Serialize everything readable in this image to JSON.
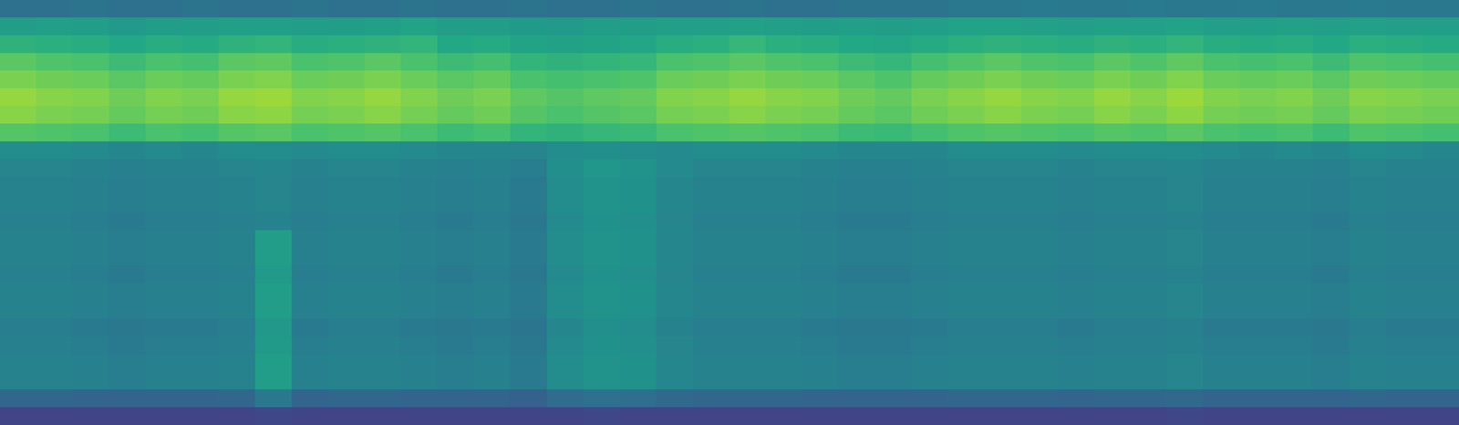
{
  "chart_data": {
    "type": "heatmap",
    "tick_labels": false,
    "zlim": [
      0,
      100
    ],
    "values": [
      [
        37,
        37,
        38,
        37,
        37,
        38,
        37,
        37,
        38,
        37,
        37,
        38,
        37,
        37,
        38,
        37,
        37,
        38,
        37,
        37,
        38,
        37,
        37,
        38,
        38,
        38,
        40,
        40,
        41,
        40,
        40,
        41,
        40,
        40,
        41,
        40,
        40,
        41,
        40,
        40
      ],
      [
        55,
        56,
        55,
        54,
        55,
        55,
        56,
        56,
        55,
        55,
        56,
        58,
        55,
        55,
        54,
        54,
        55,
        55,
        56,
        56,
        57,
        56,
        55,
        56,
        55,
        56,
        58,
        58,
        57,
        56,
        57,
        57,
        58,
        56,
        56,
        57,
        56,
        57,
        56,
        56
      ],
      [
        64,
        63,
        62,
        60,
        62,
        61,
        64,
        65,
        62,
        63,
        64,
        65,
        60,
        61,
        58,
        57,
        58,
        59,
        62,
        63,
        66,
        63,
        62,
        60,
        59,
        61,
        63,
        64,
        63,
        62,
        64,
        63,
        65,
        62,
        61,
        62,
        60,
        63,
        62,
        61
      ],
      [
        74,
        72,
        71,
        68,
        71,
        70,
        74,
        75,
        71,
        72,
        74,
        71,
        68,
        70,
        65,
        64,
        65,
        66,
        71,
        72,
        74,
        72,
        71,
        68,
        66,
        70,
        72,
        74,
        72,
        71,
        74,
        72,
        75,
        71,
        70,
        71,
        68,
        72,
        71,
        70
      ],
      [
        80,
        78,
        77,
        74,
        77,
        76,
        80,
        81,
        77,
        78,
        80,
        77,
        74,
        76,
        71,
        70,
        71,
        72,
        77,
        78,
        80,
        78,
        77,
        74,
        72,
        76,
        78,
        80,
        78,
        77,
        80,
        78,
        81,
        77,
        76,
        77,
        74,
        78,
        77,
        76
      ],
      [
        84,
        82,
        81,
        78,
        81,
        80,
        84,
        85,
        81,
        82,
        84,
        81,
        78,
        80,
        75,
        73,
        75,
        76,
        81,
        82,
        84,
        82,
        81,
        78,
        76,
        80,
        82,
        84,
        82,
        81,
        84,
        82,
        85,
        81,
        80,
        81,
        78,
        82,
        81,
        80
      ],
      [
        82,
        80,
        79,
        76,
        79,
        78,
        82,
        83,
        79,
        80,
        82,
        79,
        76,
        78,
        73,
        71,
        73,
        74,
        79,
        80,
        82,
        80,
        79,
        76,
        74,
        78,
        80,
        82,
        80,
        79,
        82,
        80,
        83,
        79,
        78,
        79,
        76,
        80,
        79,
        78
      ],
      [
        73,
        72,
        71,
        68,
        71,
        70,
        73,
        74,
        71,
        72,
        73,
        71,
        68,
        70,
        65,
        64,
        66,
        67,
        71,
        72,
        73,
        72,
        71,
        68,
        67,
        70,
        72,
        73,
        72,
        71,
        73,
        72,
        74,
        71,
        70,
        71,
        68,
        72,
        71,
        70
      ],
      [
        48,
        48,
        47,
        46,
        47,
        46,
        48,
        48,
        47,
        48,
        48,
        47,
        46,
        46,
        45,
        48,
        49,
        48,
        47,
        48,
        48,
        48,
        47,
        46,
        46,
        46,
        48,
        48,
        48,
        47,
        48,
        48,
        48,
        47,
        46,
        47,
        46,
        48,
        47,
        46
      ],
      [
        45,
        45,
        44,
        43,
        44,
        44,
        45,
        46,
        44,
        45,
        45,
        44,
        43,
        44,
        42,
        49,
        52,
        51,
        47,
        45,
        45,
        45,
        44,
        43,
        43,
        44,
        45,
        45,
        45,
        44,
        45,
        45,
        46,
        44,
        44,
        44,
        43,
        45,
        44,
        44
      ],
      [
        44,
        44,
        43,
        42,
        43,
        43,
        44,
        45,
        43,
        44,
        44,
        43,
        42,
        43,
        41,
        48,
        51,
        50,
        46,
        44,
        44,
        44,
        43,
        42,
        42,
        43,
        44,
        44,
        44,
        43,
        44,
        44,
        45,
        43,
        43,
        43,
        42,
        44,
        43,
        43
      ],
      [
        44,
        44,
        43,
        42,
        43,
        43,
        44,
        45,
        43,
        44,
        44,
        43,
        42,
        43,
        41,
        48,
        51,
        50,
        46,
        44,
        44,
        44,
        43,
        42,
        42,
        43,
        44,
        44,
        44,
        43,
        44,
        44,
        45,
        43,
        43,
        43,
        42,
        44,
        43,
        43
      ],
      [
        43,
        43,
        42,
        41,
        42,
        42,
        43,
        44,
        42,
        43,
        43,
        42,
        41,
        42,
        40,
        47,
        50,
        49,
        45,
        43,
        43,
        43,
        42,
        41,
        41,
        42,
        43,
        43,
        43,
        42,
        43,
        43,
        44,
        42,
        42,
        42,
        41,
        43,
        42,
        42
      ],
      [
        44,
        44,
        43,
        42,
        43,
        43,
        44,
        55,
        43,
        44,
        44,
        43,
        42,
        43,
        41,
        48,
        51,
        50,
        46,
        44,
        44,
        44,
        43,
        42,
        42,
        43,
        44,
        44,
        44,
        43,
        44,
        44,
        45,
        43,
        43,
        43,
        42,
        44,
        43,
        43
      ],
      [
        44,
        44,
        43,
        42,
        43,
        43,
        44,
        55,
        43,
        44,
        44,
        43,
        42,
        43,
        41,
        48,
        51,
        50,
        46,
        44,
        44,
        44,
        43,
        42,
        42,
        43,
        44,
        44,
        44,
        43,
        44,
        44,
        45,
        43,
        43,
        43,
        42,
        44,
        43,
        43
      ],
      [
        43,
        43,
        42,
        41,
        42,
        42,
        43,
        54,
        42,
        43,
        43,
        42,
        41,
        42,
        40,
        47,
        50,
        49,
        45,
        43,
        43,
        43,
        42,
        41,
        41,
        42,
        43,
        43,
        43,
        42,
        43,
        43,
        44,
        42,
        42,
        42,
        41,
        43,
        42,
        42
      ],
      [
        44,
        44,
        43,
        42,
        43,
        43,
        44,
        55,
        43,
        44,
        44,
        43,
        42,
        43,
        41,
        48,
        51,
        50,
        46,
        44,
        44,
        44,
        43,
        42,
        42,
        43,
        44,
        44,
        44,
        43,
        44,
        44,
        45,
        43,
        43,
        43,
        42,
        44,
        43,
        43
      ],
      [
        44,
        44,
        43,
        42,
        43,
        43,
        44,
        55,
        43,
        44,
        44,
        43,
        42,
        43,
        41,
        48,
        51,
        50,
        46,
        44,
        44,
        44,
        43,
        42,
        42,
        43,
        44,
        44,
        44,
        43,
        44,
        44,
        45,
        43,
        43,
        43,
        42,
        44,
        43,
        43
      ],
      [
        42,
        42,
        41,
        40,
        41,
        41,
        42,
        53,
        41,
        42,
        42,
        41,
        40,
        41,
        39,
        46,
        49,
        48,
        44,
        42,
        42,
        42,
        41,
        40,
        40,
        41,
        42,
        42,
        42,
        41,
        42,
        42,
        43,
        41,
        41,
        41,
        40,
        42,
        41,
        41
      ],
      [
        43,
        43,
        42,
        41,
        42,
        42,
        43,
        54,
        42,
        43,
        43,
        42,
        41,
        42,
        40,
        47,
        50,
        49,
        45,
        43,
        43,
        43,
        42,
        41,
        41,
        42,
        43,
        43,
        43,
        42,
        43,
        43,
        44,
        42,
        42,
        42,
        41,
        43,
        42,
        42
      ],
      [
        44,
        44,
        43,
        42,
        43,
        43,
        44,
        55,
        43,
        44,
        44,
        43,
        42,
        43,
        41,
        48,
        51,
        50,
        46,
        44,
        44,
        44,
        43,
        42,
        42,
        43,
        44,
        44,
        44,
        43,
        44,
        44,
        45,
        43,
        43,
        43,
        42,
        44,
        43,
        43
      ],
      [
        44,
        44,
        43,
        42,
        43,
        43,
        44,
        55,
        43,
        44,
        44,
        43,
        42,
        43,
        41,
        48,
        51,
        50,
        46,
        44,
        44,
        44,
        43,
        42,
        42,
        43,
        44,
        44,
        44,
        43,
        44,
        44,
        45,
        43,
        43,
        43,
        42,
        44,
        43,
        43
      ],
      [
        33,
        33,
        32,
        32,
        32,
        32,
        33,
        40,
        32,
        33,
        33,
        32,
        32,
        32,
        31,
        35,
        37,
        36,
        34,
        33,
        33,
        33,
        32,
        32,
        32,
        32,
        33,
        33,
        33,
        32,
        33,
        33,
        34,
        32,
        32,
        32,
        32,
        33,
        32,
        32
      ],
      [
        20,
        20,
        20,
        20,
        20,
        20,
        20,
        21,
        20,
        20,
        20,
        20,
        20,
        20,
        20,
        20,
        21,
        20,
        20,
        20,
        20,
        20,
        20,
        20,
        20,
        20,
        20,
        20,
        20,
        20,
        20,
        20,
        21,
        20,
        20,
        20,
        20,
        20,
        20,
        20
      ]
    ]
  }
}
